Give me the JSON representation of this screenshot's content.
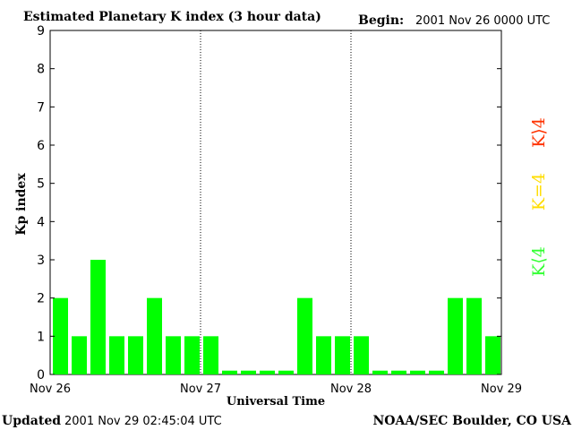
{
  "chart_data": {
    "type": "bar",
    "title": "Estimated Planetary K index (3 hour data)",
    "begin_label": "Begin:",
    "begin_value": "2001 Nov 26 0000 UTC",
    "xlabel": "Universal Time",
    "ylabel": "Kp index",
    "ylim": [
      0,
      9
    ],
    "yticks": [
      "0",
      "1",
      "2",
      "3",
      "4",
      "5",
      "6",
      "7",
      "8",
      "9"
    ],
    "xticks": [
      "Nov 26",
      "Nov 27",
      "Nov 28",
      "Nov 29"
    ],
    "bar_count": 24,
    "values": [
      2,
      1,
      3,
      1,
      1,
      2,
      1,
      1,
      1,
      0.1,
      0.1,
      0.1,
      0.1,
      2,
      1,
      1,
      1,
      0.1,
      0.1,
      0.1,
      0.1,
      2,
      2,
      1
    ],
    "bar_color": "#00ff00",
    "day_dividers": "dotted",
    "legend": [
      {
        "label": "K⟨4",
        "color": "#33ff33"
      },
      {
        "label": "K=4",
        "color": "#ffdd00"
      },
      {
        "label": "K⟩4",
        "color": "#ff3300"
      }
    ],
    "legend_placement": "right, rotated vertical"
  },
  "footer": {
    "updated_label": "Updated",
    "updated_value": "2001 Nov 29 02:45:04 UTC",
    "source": "NOAA/SEC Boulder, CO USA"
  }
}
